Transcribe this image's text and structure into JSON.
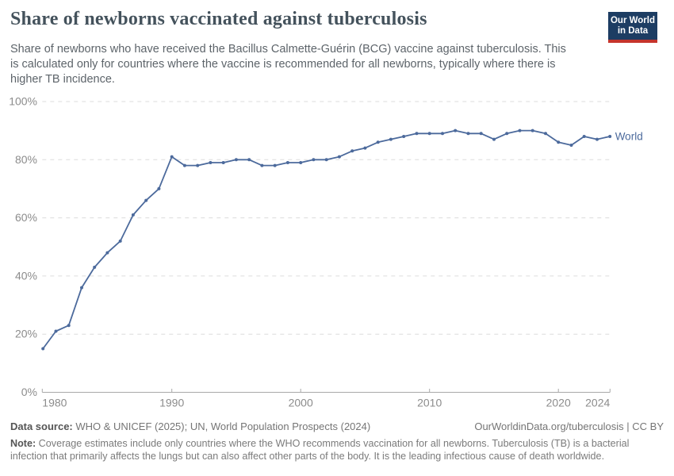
{
  "header": {
    "title": "Share of newborns vaccinated against tuberculosis",
    "subtitle": "Share of newborns who have received the Bacillus Calmette-Guérin (BCG) vaccine against tuberculosis. This is calculated only for countries where the vaccine is recommended for all newborns, typically where there is higher TB incidence.",
    "logo": {
      "line1": "Our World",
      "line2": "in Data",
      "bg_color": "#1d3d63",
      "accent_color": "#c5342c"
    }
  },
  "chart_data": {
    "type": "line",
    "title": "Share of newborns vaccinated against tuberculosis",
    "xlabel": "",
    "ylabel": "",
    "x": [
      1980,
      1981,
      1982,
      1983,
      1984,
      1985,
      1986,
      1987,
      1988,
      1989,
      1990,
      1991,
      1992,
      1993,
      1994,
      1995,
      1996,
      1997,
      1998,
      1999,
      2000,
      2001,
      2002,
      2003,
      2004,
      2005,
      2006,
      2007,
      2008,
      2009,
      2010,
      2011,
      2012,
      2013,
      2014,
      2015,
      2016,
      2017,
      2018,
      2019,
      2020,
      2021,
      2022,
      2023,
      2024
    ],
    "series": [
      {
        "name": "World",
        "color": "#4C6A9C",
        "values": [
          15,
          21,
          23,
          36,
          43,
          48,
          52,
          61,
          66,
          70,
          81,
          78,
          78,
          79,
          79,
          80,
          80,
          78,
          78,
          79,
          79,
          80,
          80,
          81,
          83,
          84,
          86,
          87,
          88,
          89,
          89,
          89,
          90,
          89,
          89,
          87,
          89,
          90,
          90,
          89,
          86,
          85,
          88,
          87,
          88
        ]
      }
    ],
    "xlim": [
      1980,
      2024
    ],
    "ylim": [
      0,
      100
    ],
    "yticks": [
      0,
      20,
      40,
      60,
      80,
      100
    ],
    "ytick_suffix": "%",
    "xticks": [
      1980,
      1990,
      2000,
      2010,
      2020,
      2024
    ],
    "grid": "horizontal-dashed",
    "legend_position": "end-of-line-label",
    "end_label": "World",
    "colors": {
      "grid": "#dcdcdc",
      "axis": "#a8a8a8",
      "tick_label": "#8c8c8c"
    }
  },
  "footer": {
    "datasource_label": "Data source:",
    "datasource_text": " WHO & UNICEF (2025); UN, World Population Prospects (2024)",
    "link": "OurWorldinData.org/tuberculosis | CC BY",
    "note_label": "Note:",
    "note_text": " Coverage estimates include only countries where the WHO recommends vaccination for all newborns. Tuberculosis (TB) is a bacterial infection that primarily affects the lungs but can also affect other parts of the body. It is the leading infectious cause of death worldwide."
  }
}
